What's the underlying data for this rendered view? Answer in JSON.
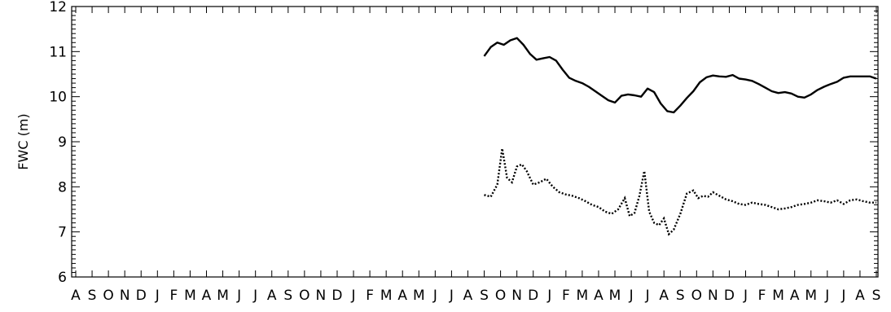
{
  "chart_data": {
    "type": "line",
    "ylabel": "FWC (m)",
    "ylim": [
      6,
      12
    ],
    "y_ticks": [
      "6",
      "7",
      "8",
      "9",
      "10",
      "11",
      "12"
    ],
    "x_tick_labels": [
      "A",
      "S",
      "O",
      "N",
      "D",
      "J",
      "F",
      "M",
      "A",
      "M",
      "J",
      "J",
      "A",
      "S",
      "O",
      "N",
      "D",
      "J",
      "F",
      "M",
      "A",
      "M",
      "J",
      "J",
      "A",
      "S",
      "O",
      "N",
      "D",
      "J",
      "F",
      "M",
      "A",
      "M",
      "J",
      "J",
      "A",
      "S",
      "O",
      "N",
      "D",
      "J",
      "F",
      "M",
      "A",
      "M",
      "J",
      "J",
      "A",
      "S"
    ],
    "series": [
      {
        "style": "solid",
        "x": [
          25.0,
          25.4,
          25.8,
          26.2,
          26.6,
          27.0,
          27.4,
          27.8,
          28.2,
          28.6,
          29.0,
          29.4,
          29.8,
          30.2,
          30.6,
          31.0,
          31.4,
          31.8,
          32.2,
          32.6,
          33.0,
          33.4,
          33.8,
          34.2,
          34.6,
          35.0,
          35.4,
          35.8,
          36.2,
          36.6,
          37.0,
          37.4,
          37.8,
          38.2,
          38.6,
          39.0,
          39.4,
          39.8,
          40.2,
          40.6,
          41.0,
          41.4,
          41.8,
          42.2,
          42.6,
          43.0,
          43.4,
          43.8,
          44.2,
          44.6,
          45.0,
          45.4,
          45.8,
          46.2,
          46.6,
          47.0,
          47.4,
          47.8,
          48.2,
          48.6,
          49.0
        ],
        "values": [
          10.9,
          11.1,
          11.2,
          11.15,
          11.25,
          11.3,
          11.15,
          10.95,
          10.82,
          10.85,
          10.88,
          10.8,
          10.6,
          10.42,
          10.35,
          10.3,
          10.22,
          10.12,
          10.02,
          9.92,
          9.87,
          10.02,
          10.05,
          10.03,
          10.0,
          10.18,
          10.1,
          9.85,
          9.68,
          9.65,
          9.8,
          9.97,
          10.12,
          10.32,
          10.43,
          10.47,
          10.45,
          10.44,
          10.48,
          10.4,
          10.38,
          10.35,
          10.28,
          10.2,
          10.12,
          10.08,
          10.1,
          10.07,
          10.0,
          9.98,
          10.05,
          10.15,
          10.22,
          10.28,
          10.33,
          10.42,
          10.45,
          10.45,
          10.45,
          10.45,
          10.4
        ]
      },
      {
        "style": "dotted",
        "x": [
          25.0,
          25.4,
          25.8,
          26.1,
          26.4,
          26.7,
          27.0,
          27.3,
          27.6,
          28.0,
          28.4,
          28.8,
          29.2,
          29.6,
          30.0,
          30.4,
          30.8,
          31.2,
          31.6,
          32.0,
          32.4,
          32.8,
          33.2,
          33.6,
          33.9,
          34.2,
          34.5,
          34.8,
          35.1,
          35.4,
          35.7,
          36.0,
          36.3,
          36.6,
          37.0,
          37.4,
          37.8,
          38.1,
          38.4,
          38.7,
          39.0,
          39.4,
          39.8,
          40.2,
          40.6,
          41.0,
          41.4,
          41.8,
          42.2,
          42.6,
          43.0,
          43.4,
          43.8,
          44.2,
          44.6,
          45.0,
          45.4,
          45.8,
          46.2,
          46.6,
          47.0,
          47.4,
          47.8,
          48.2,
          48.6,
          49.0
        ],
        "values": [
          7.82,
          7.78,
          8.05,
          8.85,
          8.2,
          8.1,
          8.45,
          8.5,
          8.35,
          8.05,
          8.1,
          8.18,
          8.0,
          7.88,
          7.83,
          7.8,
          7.75,
          7.68,
          7.6,
          7.55,
          7.45,
          7.4,
          7.5,
          7.75,
          7.35,
          7.42,
          7.8,
          8.35,
          7.45,
          7.2,
          7.15,
          7.3,
          6.95,
          7.05,
          7.4,
          7.85,
          7.92,
          7.75,
          7.8,
          7.78,
          7.88,
          7.8,
          7.72,
          7.68,
          7.62,
          7.6,
          7.65,
          7.62,
          7.6,
          7.55,
          7.5,
          7.52,
          7.55,
          7.6,
          7.62,
          7.65,
          7.7,
          7.68,
          7.65,
          7.7,
          7.62,
          7.7,
          7.72,
          7.68,
          7.65,
          7.65
        ]
      }
    ]
  }
}
